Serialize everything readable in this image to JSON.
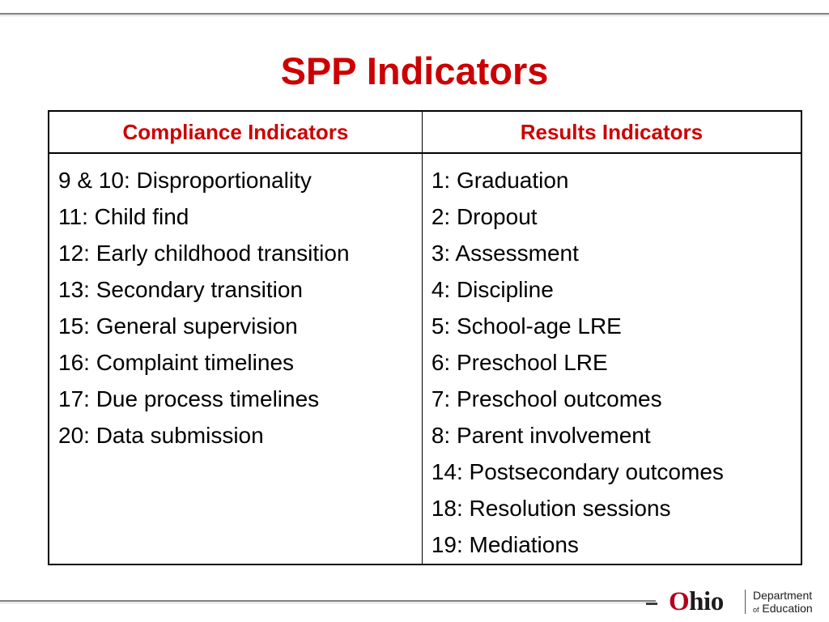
{
  "slide": {
    "title": "SPP Indicators"
  },
  "table": {
    "headers": [
      "Compliance Indicators",
      "Results Indicators"
    ],
    "compliance": [
      "9 & 10: Disproportionality",
      "11: Child find",
      "12: Early childhood transition",
      "13: Secondary transition",
      "15: General supervision",
      "16: Complaint timelines",
      "17: Due process timelines",
      "20: Data submission"
    ],
    "results": [
      "1: Graduation",
      "2: Dropout",
      "3: Assessment",
      "4: Discipline",
      "5: School-age LRE",
      "6: Preschool LRE",
      "7: Preschool outcomes",
      "8: Parent involvement",
      "14: Postsecondary outcomes",
      "18: Resolution sessions",
      "19: Mediations"
    ]
  },
  "logo": {
    "o": "O",
    "hio": "hio",
    "line1": "Department",
    "line2_of": "of",
    "line2_rest": " Education"
  },
  "colors": {
    "title_red": "#cc0000",
    "ohio_red": "#b0001e",
    "text": "#000000"
  }
}
